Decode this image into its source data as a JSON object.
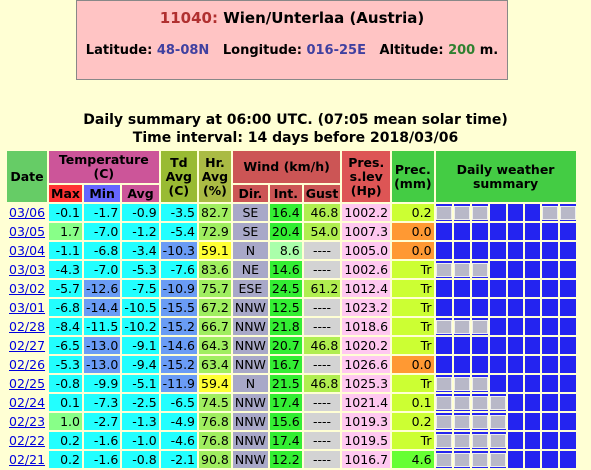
{
  "header": {
    "station_id": "11040:",
    "station_name": "Wien/Unterlaa (Austria)",
    "latitude_label": "Latitude:",
    "latitude": "48-08N",
    "longitude_label": "Longitude:",
    "longitude": "016-25E",
    "altitude_label": "Altitude:",
    "altitude": "200",
    "altitude_unit": "m."
  },
  "summary_line": "Daily summary at 06:00 UTC. (07:05 mean solar time)",
  "interval_line": "Time interval: 14 days before 2018/03/06",
  "table": {
    "header_top": [
      "Date",
      "Temperature (C)",
      "Td Avg (C)",
      "Hr. Avg (%)",
      "Wind (km/h)",
      "Pres. s.lev (Hp)",
      "Prec. (mm)",
      "Daily weather summary"
    ],
    "header_sub": [
      "Max",
      "Min",
      "Avg",
      "Dir.",
      "Int.",
      "Gust"
    ],
    "rows": [
      [
        "03/06",
        "-0.1",
        "-1.7",
        "-0.9",
        "-3.5",
        "82.7",
        "SE",
        "16.4",
        "46.8",
        "1002.2",
        "0.2"
      ],
      [
        "03/05",
        "1.7",
        "-7.0",
        "-1.2",
        "-5.4",
        "72.9",
        "SE",
        "20.4",
        "54.0",
        "1007.3",
        "0.0"
      ],
      [
        "03/04",
        "-1.1",
        "-6.8",
        "-3.4",
        "-10.3",
        "59.1",
        "N",
        "8.6",
        "----",
        "1005.0",
        "0.0"
      ],
      [
        "03/03",
        "-4.3",
        "-7.0",
        "-5.3",
        "-7.6",
        "83.6",
        "NE",
        "14.6",
        "----",
        "1002.6",
        "Tr"
      ],
      [
        "03/02",
        "-5.7",
        "-12.6",
        "-7.5",
        "-10.9",
        "75.7",
        "ESE",
        "24.5",
        "61.2",
        "1012.4",
        "Tr"
      ],
      [
        "03/01",
        "-6.8",
        "-14.4",
        "-10.5",
        "-15.5",
        "67.2",
        "NNW",
        "12.5",
        "----",
        "1023.2",
        "Tr"
      ],
      [
        "02/28",
        "-8.4",
        "-11.5",
        "-10.2",
        "-15.2",
        "66.7",
        "NNW",
        "21.8",
        "----",
        "1018.6",
        "Tr"
      ],
      [
        "02/27",
        "-6.5",
        "-13.0",
        "-9.1",
        "-14.6",
        "64.3",
        "NNW",
        "20.7",
        "46.8",
        "1020.2",
        "Tr"
      ],
      [
        "02/26",
        "-5.3",
        "-13.0",
        "-9.4",
        "-15.2",
        "63.4",
        "NNW",
        "16.7",
        "----",
        "1026.6",
        "0.0"
      ],
      [
        "02/25",
        "-0.8",
        "-9.9",
        "-5.1",
        "-11.9",
        "59.4",
        "N",
        "21.5",
        "46.8",
        "1025.3",
        "Tr"
      ],
      [
        "02/24",
        "0.1",
        "-7.3",
        "-2.5",
        "-6.5",
        "74.5",
        "NNW",
        "17.4",
        "----",
        "1021.4",
        "0.1"
      ],
      [
        "02/23",
        "1.0",
        "-2.7",
        "-1.3",
        "-4.9",
        "76.8",
        "NNW",
        "15.6",
        "----",
        "1019.3",
        "0.2"
      ],
      [
        "02/22",
        "0.2",
        "-1.6",
        "-1.0",
        "-4.6",
        "76.8",
        "NNW",
        "17.4",
        "----",
        "1019.5",
        "Tr"
      ],
      [
        "02/21",
        "0.2",
        "-1.6",
        "-0.8",
        "-2.1",
        "90.8",
        "NNW",
        "12.2",
        "----",
        "1016.7",
        "4.6"
      ]
    ]
  }
}
